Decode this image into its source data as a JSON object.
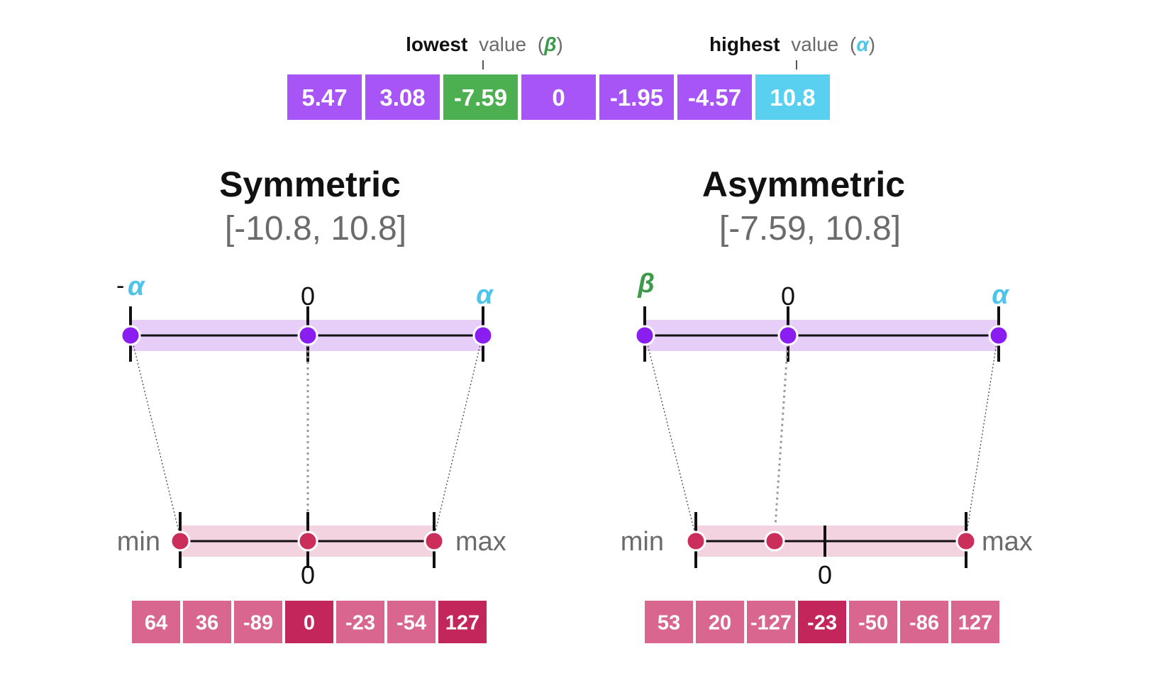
{
  "colors": {
    "purple_cell": "#a855f7",
    "green_cell": "#4caf50",
    "cyan_cell": "#5ad0f0",
    "pink_cell": "#d9668e",
    "pink_dark_cell": "#c2265a",
    "purple_dot": "#8a1ef0",
    "pink_dot": "#cc2e5c",
    "purple_band": "#e6cef8",
    "pink_band": "#f3d3e0",
    "alpha": "#4dc4ea",
    "beta": "#3c9a4a",
    "gray_text": "#6b6b6b"
  },
  "header": {
    "lowest_bold": "lowest",
    "lowest_rest": "value",
    "lowest_symbol": "β",
    "highest_bold": "highest",
    "highest_rest": "value",
    "highest_symbol": "α",
    "values": [
      {
        "text": "5.47",
        "kind": "purple"
      },
      {
        "text": "3.08",
        "kind": "purple"
      },
      {
        "text": "-7.59",
        "kind": "green"
      },
      {
        "text": "0",
        "kind": "purple"
      },
      {
        "text": "-1.95",
        "kind": "purple"
      },
      {
        "text": "-4.57",
        "kind": "purple"
      },
      {
        "text": "10.8",
        "kind": "cyan"
      }
    ]
  },
  "symmetric": {
    "title": "Symmetric",
    "range": "[-10.8, 10.8]",
    "left_symbol_prefix": "-",
    "left_symbol": "α",
    "center_label": "0",
    "right_symbol": "α",
    "min_label": "min",
    "max_label": "max",
    "zero_label": "0",
    "outputs": [
      {
        "text": "64",
        "kind": "pink"
      },
      {
        "text": "36",
        "kind": "pink"
      },
      {
        "text": "-89",
        "kind": "pink"
      },
      {
        "text": "0",
        "kind": "dark"
      },
      {
        "text": "-23",
        "kind": "pink"
      },
      {
        "text": "-54",
        "kind": "pink"
      },
      {
        "text": "127",
        "kind": "dark"
      }
    ]
  },
  "asymmetric": {
    "title": "Asymmetric",
    "range": "[-7.59, 10.8]",
    "left_symbol": "β",
    "center_label": "0",
    "right_symbol": "α",
    "min_label": "min",
    "max_label": "max",
    "zero_label": "0",
    "outputs": [
      {
        "text": "53",
        "kind": "pink"
      },
      {
        "text": "20",
        "kind": "pink"
      },
      {
        "text": "-127",
        "kind": "pink"
      },
      {
        "text": "-23",
        "kind": "dark"
      },
      {
        "text": "-50",
        "kind": "pink"
      },
      {
        "text": "-86",
        "kind": "pink"
      },
      {
        "text": "127",
        "kind": "pink"
      }
    ]
  }
}
